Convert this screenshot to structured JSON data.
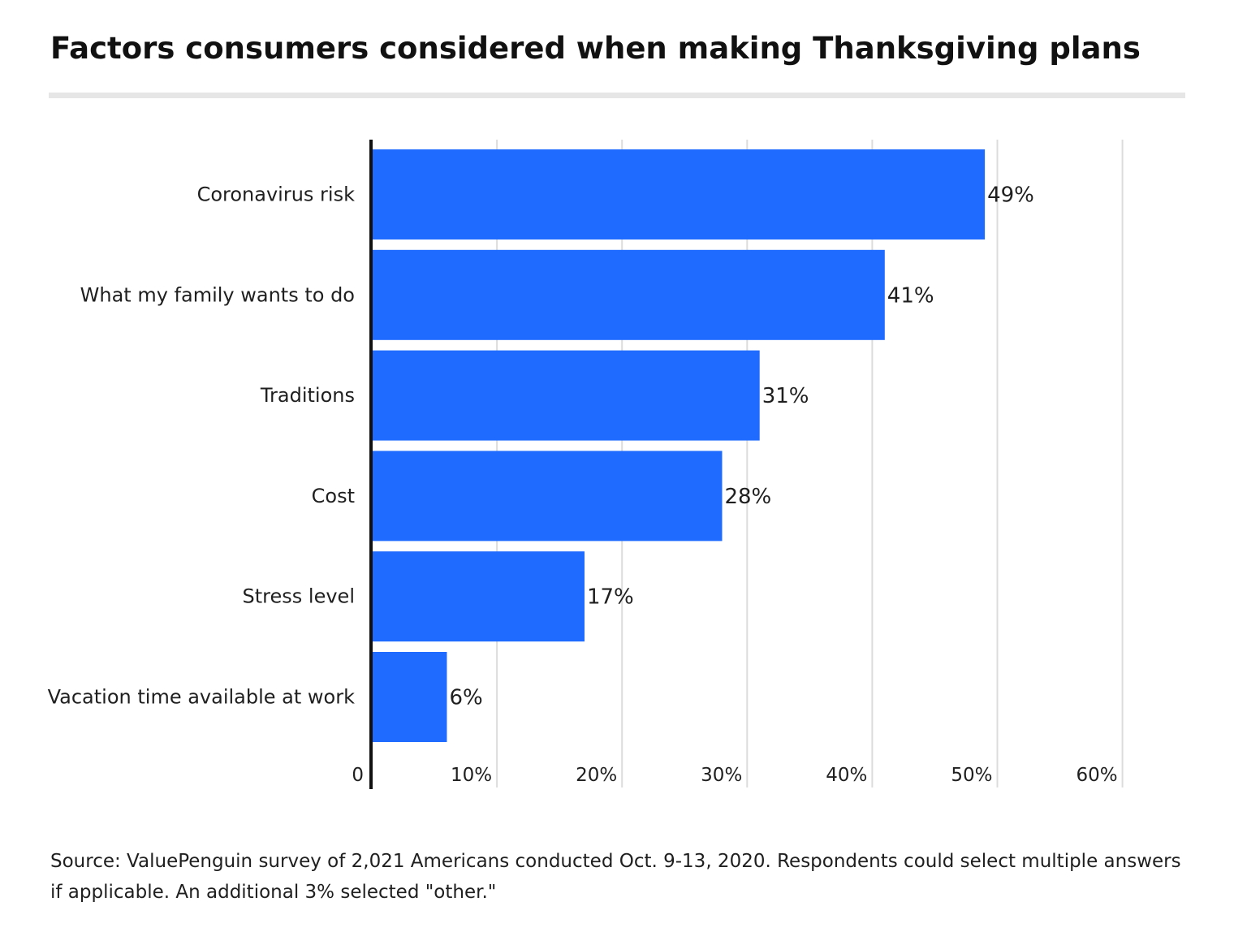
{
  "title": "Factors consumers considered when making Thanksgiving plans",
  "source": "Source: ValuePenguin survey of 2,021 Americans conducted Oct. 9-13, 2020. Respondents could select multiple answers if applicable. An additional 3% selected \"other.\"",
  "colors": {
    "bar": "#1f6bff",
    "grid": "#dcdcdc",
    "axis": "#111111",
    "title_rule": "#e6e6e6"
  },
  "chart_data": {
    "type": "bar",
    "orientation": "horizontal",
    "title": "Factors consumers considered when making Thanksgiving plans",
    "xlabel": "",
    "ylabel": "",
    "categories": [
      "Coronavirus risk",
      "What my family wants to do",
      "Traditions",
      "Cost",
      "Stress level",
      "Vacation time available at work"
    ],
    "values": [
      49,
      41,
      31,
      28,
      17,
      6
    ],
    "value_labels": [
      "49%",
      "41%",
      "31%",
      "28%",
      "17%",
      "6%"
    ],
    "xlim": [
      0,
      60
    ],
    "ticks": [
      0,
      10,
      20,
      30,
      40,
      50,
      60
    ],
    "tick_labels": [
      "0",
      "10%",
      "20%",
      "30%",
      "40%",
      "50%",
      "60%"
    ],
    "grid": true,
    "legend": "none"
  }
}
